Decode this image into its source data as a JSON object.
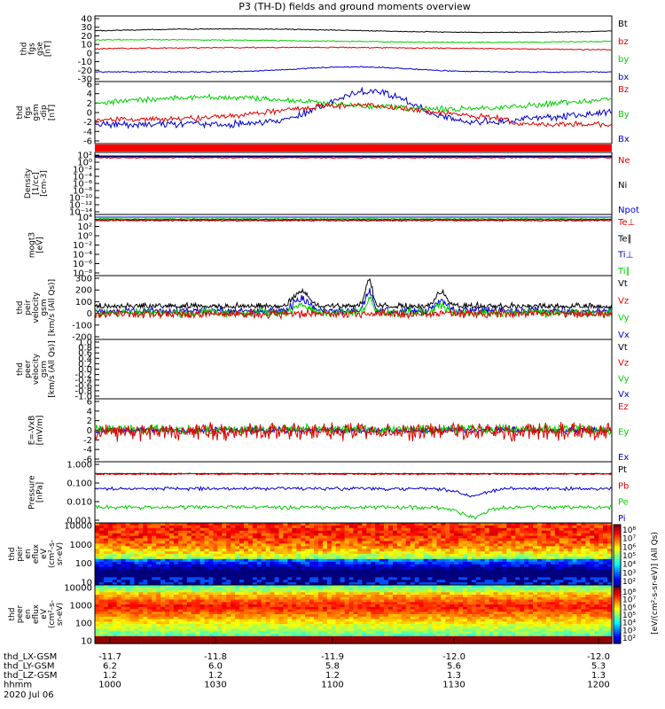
{
  "title": "P3 (TH-D) fields and ground moments overview",
  "colors": {
    "black": "#000000",
    "red": "#e00000",
    "green": "#00d000",
    "blue": "#0000cc"
  },
  "panels": [
    {
      "ylabel": [
        "thd",
        "fgs",
        "gse",
        "[nT]"
      ],
      "ticks": [
        "40",
        "30",
        "20",
        "10",
        "0",
        "-10",
        "-20",
        "-30"
      ],
      "legend": [
        {
          "t": "Bt",
          "c": "black"
        },
        {
          "t": "bz",
          "c": "red"
        },
        {
          "t": "by",
          "c": "green"
        },
        {
          "t": "bx",
          "c": "blue"
        }
      ]
    },
    {
      "ylabel": [
        "thd",
        "fgs",
        "gsm",
        "-dip",
        "[nT]"
      ],
      "ticks": [
        "6",
        "4",
        "2",
        "0",
        "-2",
        "-4",
        "-6"
      ],
      "legend": [
        {
          "t": "Bz",
          "c": "red"
        },
        {
          "t": "By",
          "c": "green"
        },
        {
          "t": "Bx",
          "c": "blue"
        }
      ]
    },
    {
      "ylabel": [
        "Density",
        "[1/cc]",
        "[cm-3]"
      ],
      "ticks": [
        "10²",
        "10⁰",
        "10⁻²",
        "10⁻⁴",
        "10⁻⁶",
        "10⁻⁸",
        "10⁻¹⁰",
        "10⁻¹²",
        "10⁻¹⁴"
      ],
      "legend": [
        {
          "t": "Ne",
          "c": "red"
        },
        {
          "t": "Ni",
          "c": "black"
        },
        {
          "t": "Npot",
          "c": "blue"
        }
      ]
    },
    {
      "ylabel": [
        "mogt3",
        "[eV]"
      ],
      "ticks": [
        "10⁴",
        "10²",
        "10⁰",
        "10⁻²",
        "10⁻⁴",
        "10⁻⁶",
        "10⁻⁸"
      ],
      "legend": [
        {
          "t": "Te⊥",
          "c": "red"
        },
        {
          "t": "Te∥",
          "c": "black"
        },
        {
          "t": "Ti⊥",
          "c": "blue"
        },
        {
          "t": "Ti∥",
          "c": "green"
        }
      ]
    },
    {
      "ylabel": [
        "thd",
        "peir",
        "velocity",
        "gsm",
        "[km/s (All Qs)]"
      ],
      "ticks": [
        "300",
        "200",
        "100",
        "0",
        "-100",
        "-200"
      ],
      "legend": [
        {
          "t": "Vt",
          "c": "black"
        },
        {
          "t": "Vz",
          "c": "red"
        },
        {
          "t": "Vy",
          "c": "green"
        },
        {
          "t": "Vx",
          "c": "blue"
        }
      ]
    },
    {
      "ylabel": [
        "thd",
        "peer",
        "velocity",
        "gsm",
        "[km/s (All Qs)]"
      ],
      "ticks": [
        "1.0",
        "0.8",
        "0.6",
        "0.4",
        "0.2",
        "0.0",
        "-0.2",
        "-0.4",
        "-0.6",
        "-0.8",
        "-1.0"
      ],
      "legend": [
        {
          "t": "Vt",
          "c": "black"
        },
        {
          "t": "Vz",
          "c": "red"
        },
        {
          "t": "Vy",
          "c": "green"
        },
        {
          "t": "Vx",
          "c": "blue"
        }
      ]
    },
    {
      "ylabel": [
        "E=-VxB",
        "[mV/m]"
      ],
      "ticks": [
        "6",
        "4",
        "2",
        "0",
        "-2",
        "-4",
        "-6"
      ],
      "legend": [
        {
          "t": "Ez",
          "c": "red"
        },
        {
          "t": "Ey",
          "c": "green"
        },
        {
          "t": "Ex",
          "c": "blue"
        }
      ]
    },
    {
      "ylabel": [
        "Pressure",
        "[nPa]"
      ],
      "ticks": [
        "1.000",
        "0.100",
        "0.010",
        "0.001"
      ],
      "legend": [
        {
          "t": "Pt",
          "c": "black"
        },
        {
          "t": "Pb",
          "c": "red"
        },
        {
          "t": "Pe",
          "c": "green"
        },
        {
          "t": "Pi",
          "c": "blue"
        }
      ]
    },
    {
      "ylabel": [
        "thd",
        "peir",
        "en",
        "eflux",
        "eV",
        "(cm²-s-",
        "sr-eV)"
      ],
      "ticks": [
        "10000",
        "1000",
        "100",
        "10"
      ],
      "legend": []
    },
    {
      "ylabel": [
        "thd",
        "peer",
        "en",
        "eflux",
        "eV",
        "(cm²-s-",
        "sr-eV)"
      ],
      "ticks": [
        "10000",
        "1000",
        "100",
        "10"
      ],
      "legend": []
    }
  ],
  "colorbar1": {
    "ticks": [
      "10⁸",
      "10⁷",
      "10⁶",
      "10⁵",
      "10⁴",
      "10³",
      "10²"
    ]
  },
  "colorbar2": {
    "ticks": [
      "10⁸",
      "10⁷",
      "10⁶",
      "10⁵",
      "10⁴",
      "10³",
      "10²"
    ]
  },
  "colorbar_label": "[eV/(cm²-s-sr-eV)] (All Qs)",
  "xaxis": {
    "rows": [
      {
        "label": "thd_LX-GSM",
        "values": [
          "-11.7",
          "-11.8",
          "-11.9",
          "-12.0",
          "-12.0"
        ]
      },
      {
        "label": "thd_LY-GSM",
        "values": [
          "6.2",
          "6.0",
          "5.8",
          "5.6",
          "5.3"
        ]
      },
      {
        "label": "thd_LZ-GSM",
        "values": [
          "1.2",
          "1.2",
          "1.2",
          "1.3",
          "1.3"
        ]
      },
      {
        "label": "hhmm",
        "values": [
          "1000",
          "1030",
          "1100",
          "1130",
          "1200"
        ]
      }
    ],
    "date": "2020 Jul 06"
  },
  "chart_data": {
    "type": "line",
    "title": "P3 (TH-D) fields and ground moments overview",
    "x": [
      "1000",
      "1030",
      "1100",
      "1130",
      "1200"
    ],
    "series": [
      {
        "name": "Bt",
        "values": [
          26,
          27,
          26,
          27,
          26
        ]
      },
      {
        "name": "bz",
        "values": [
          6,
          7,
          6,
          5,
          5
        ]
      },
      {
        "name": "by",
        "values": [
          15,
          15,
          14,
          15,
          14
        ]
      },
      {
        "name": "bx",
        "values": [
          -22,
          -21,
          -16,
          -20,
          -22
        ]
      },
      {
        "name": "Bz",
        "values": [
          -2,
          -1,
          1,
          0,
          -2
        ]
      },
      {
        "name": "By",
        "values": [
          2,
          1,
          3,
          4,
          2
        ]
      },
      {
        "name": "Bx",
        "values": [
          -3,
          -2,
          5,
          0,
          2
        ]
      },
      {
        "name": "Vt",
        "values": [
          40,
          80,
          200,
          60,
          40
        ]
      },
      {
        "name": "Pt",
        "values": [
          0.3,
          0.3,
          0.3,
          0.3,
          0.3
        ]
      },
      {
        "name": "Pi",
        "values": [
          0.05,
          0.05,
          0.04,
          0.02,
          0.05
        ]
      },
      {
        "name": "Pe",
        "values": [
          0.005,
          0.004,
          0.004,
          0.002,
          0.004
        ]
      }
    ]
  }
}
